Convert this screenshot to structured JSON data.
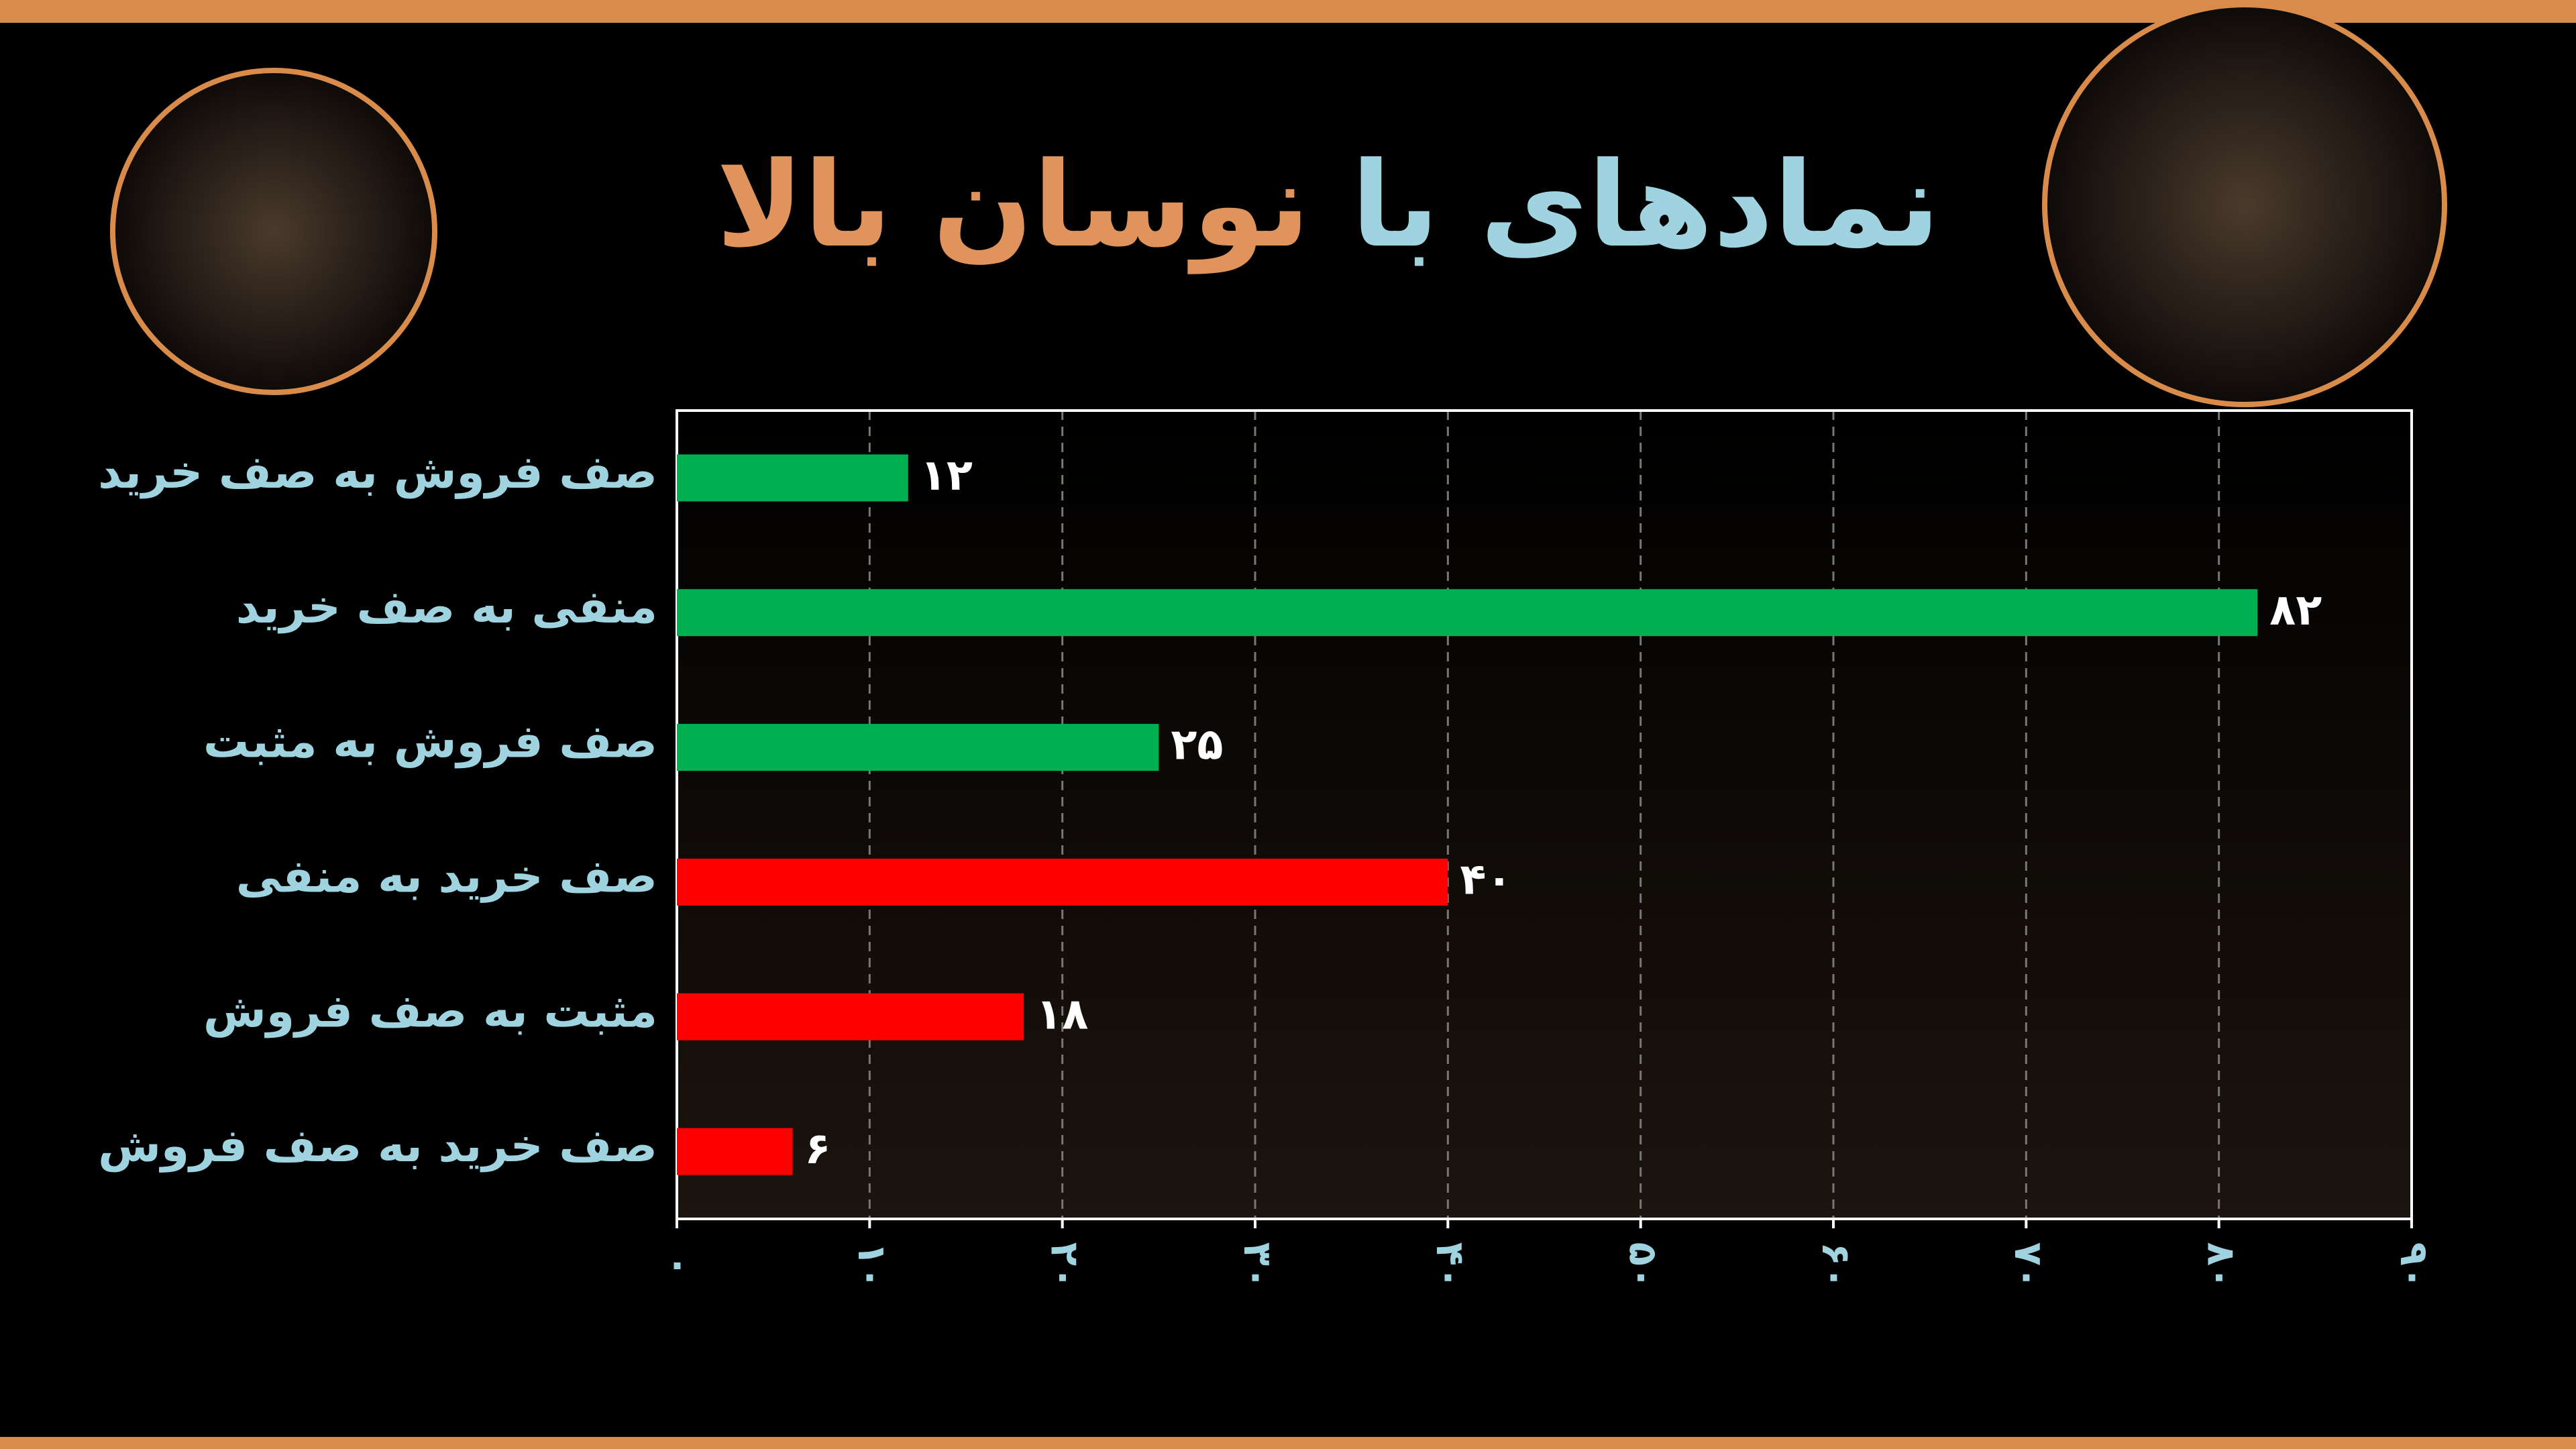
{
  "chart_data": {
    "type": "bar",
    "orientation": "horizontal",
    "title": [
      {
        "text": "نمادهای با",
        "color": "#9fd3e0"
      },
      {
        "text": "نوسان بالا",
        "color": "#e0935a"
      }
    ],
    "categories": [
      "صف فروش به صف خرید",
      "منفی به صف خرید",
      "صف فروش به مثبت",
      "صف خرید به منفی",
      "مثبت به صف فروش",
      "صف خرید به صف فروش"
    ],
    "values": [
      12,
      82,
      25,
      40,
      18,
      6
    ],
    "value_labels": [
      "۱۲",
      "۸۲",
      "۲۵",
      "۴۰",
      "۱۸",
      "۶"
    ],
    "colors": [
      "#00b050",
      "#00b050",
      "#00b050",
      "#ff0000",
      "#ff0000",
      "#ff0000"
    ],
    "xlim": [
      0,
      90
    ],
    "xticks": [
      {
        "value": 0,
        "label": "۰"
      },
      {
        "value": 10,
        "label": "۱۰"
      },
      {
        "value": 20,
        "label": "۲۰"
      },
      {
        "value": 30,
        "label": "۳۰"
      },
      {
        "value": 40,
        "label": "۴۰"
      },
      {
        "value": 50,
        "label": "۵۰"
      },
      {
        "value": 60,
        "label": "۶۰"
      },
      {
        "value": 70,
        "label": "۷۰"
      },
      {
        "value": 80,
        "label": "۸۰"
      },
      {
        "value": 90,
        "label": "۹۰"
      }
    ],
    "grid": true
  }
}
